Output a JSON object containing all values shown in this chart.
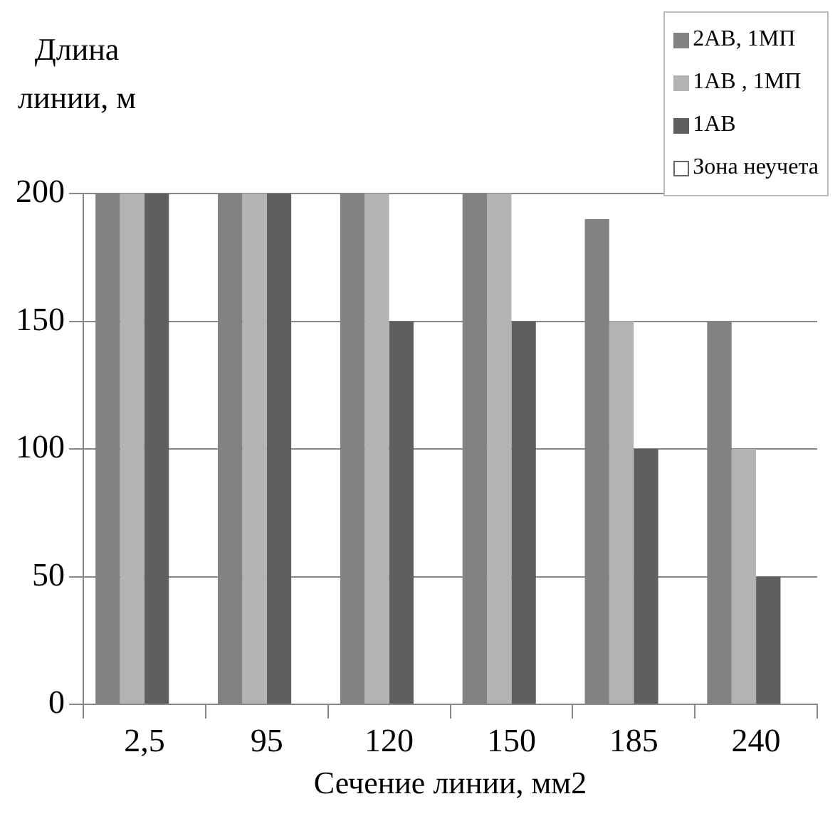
{
  "chart_data": {
    "type": "bar",
    "xlabel": "Сечение линии, мм2",
    "ylabel": "Длина линии, м",
    "categories": [
      "2,5",
      "95",
      "120",
      "150",
      "185",
      "240"
    ],
    "series": [
      {
        "name": "2АВ, 1МП",
        "color": "#828282",
        "values": [
          200,
          200,
          200,
          200,
          190,
          150
        ]
      },
      {
        "name": "1АВ , 1МП",
        "color": "#b3b3b3",
        "values": [
          200,
          200,
          200,
          200,
          150,
          100
        ]
      },
      {
        "name": "1АВ",
        "color": "#5f5f5f",
        "values": [
          200,
          200,
          150,
          150,
          100,
          50
        ]
      },
      {
        "name": "Зона неучета",
        "color": "#ffffff",
        "values": [
          null,
          null,
          null,
          null,
          null,
          null
        ]
      }
    ],
    "ylim": [
      0,
      200
    ],
    "yticks": [
      0,
      50,
      100,
      150,
      200
    ],
    "grid": "y",
    "legend": "top right"
  }
}
